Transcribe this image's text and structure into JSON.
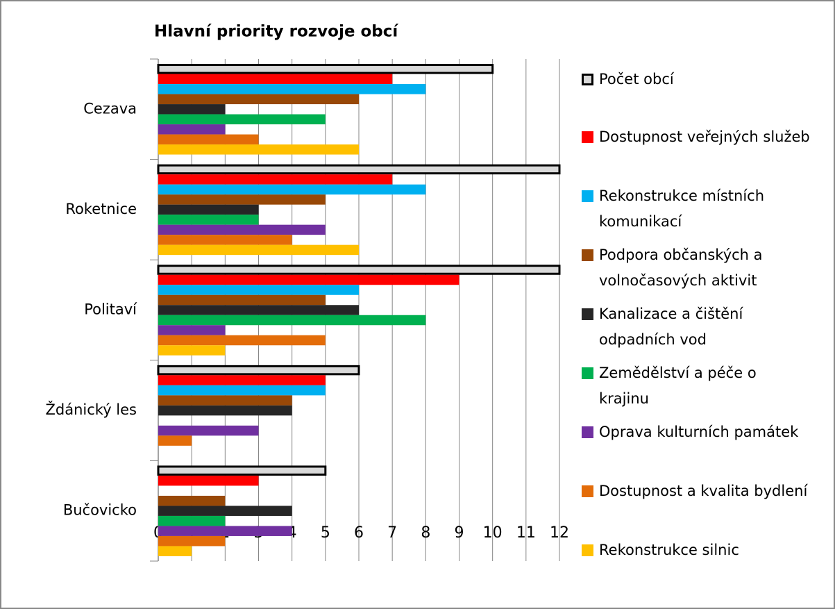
{
  "chart_data": {
    "type": "bar",
    "orientation": "horizontal",
    "title": "Hlavní priority rozvoje obcí",
    "categories": [
      "Cezava",
      "Roketnice",
      "Politaví",
      "Ždánický les",
      "Bučovicko"
    ],
    "series": [
      {
        "name": "Počet obcí",
        "color": "#d9d9d9",
        "edgecolor": "#000000",
        "values": [
          10,
          12,
          12,
          6,
          5
        ]
      },
      {
        "name": "Dostupnost veřejných služeb",
        "color": "#ff0000",
        "values": [
          7,
          7,
          9,
          5,
          3
        ]
      },
      {
        "name": "Rekonstrukce místních komunikací",
        "color": "#00b0f0",
        "values": [
          8,
          8,
          6,
          5,
          0
        ]
      },
      {
        "name": "Podpora občanských a volnočasových aktivit",
        "color": "#984807",
        "values": [
          6,
          5,
          5,
          4,
          2
        ]
      },
      {
        "name": "Kanalizace a čištění odpadních vod",
        "color": "#262626",
        "values": [
          2,
          3,
          6,
          4,
          4
        ]
      },
      {
        "name": "Zemědělství a péče o krajinu",
        "color": "#00b050",
        "values": [
          5,
          3,
          8,
          0,
          2
        ]
      },
      {
        "name": "Oprava kulturních památek",
        "color": "#7030a0",
        "values": [
          2,
          5,
          2,
          3,
          4
        ]
      },
      {
        "name": "Dostupnost a kvalita bydlení",
        "color": "#e36c09",
        "values": [
          3,
          4,
          5,
          1,
          2
        ]
      },
      {
        "name": "Rekonstrukce silnic",
        "color": "#ffc000",
        "values": [
          6,
          6,
          2,
          0,
          1
        ]
      }
    ],
    "xlim": [
      0,
      12
    ],
    "xticks": [
      0,
      1,
      2,
      3,
      4,
      5,
      6,
      7,
      8,
      9,
      10,
      11,
      12
    ],
    "grid": true,
    "legend": "right"
  }
}
